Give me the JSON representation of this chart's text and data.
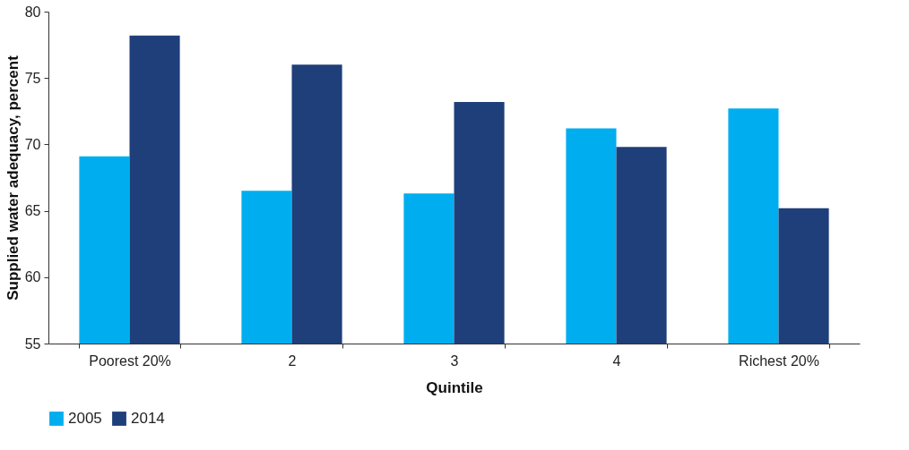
{
  "chart_data": {
    "type": "bar",
    "xlabel": "Quintile",
    "ylabel": "Supplied water adequacy, percent",
    "categories": [
      "Poorest 20%",
      "2",
      "3",
      "4",
      "Richest 20%"
    ],
    "series": [
      {
        "name": "2005",
        "color": "#00aeef",
        "values": [
          69.1,
          66.5,
          66.3,
          71.2,
          72.7
        ]
      },
      {
        "name": "2014",
        "color": "#1f3f7a",
        "values": [
          78.2,
          76.0,
          73.2,
          69.8,
          65.2
        ]
      }
    ],
    "ylim": [
      55,
      80
    ],
    "yticks": [
      55,
      60,
      65,
      70,
      75,
      80
    ],
    "grid": false,
    "legend": "bottom"
  }
}
